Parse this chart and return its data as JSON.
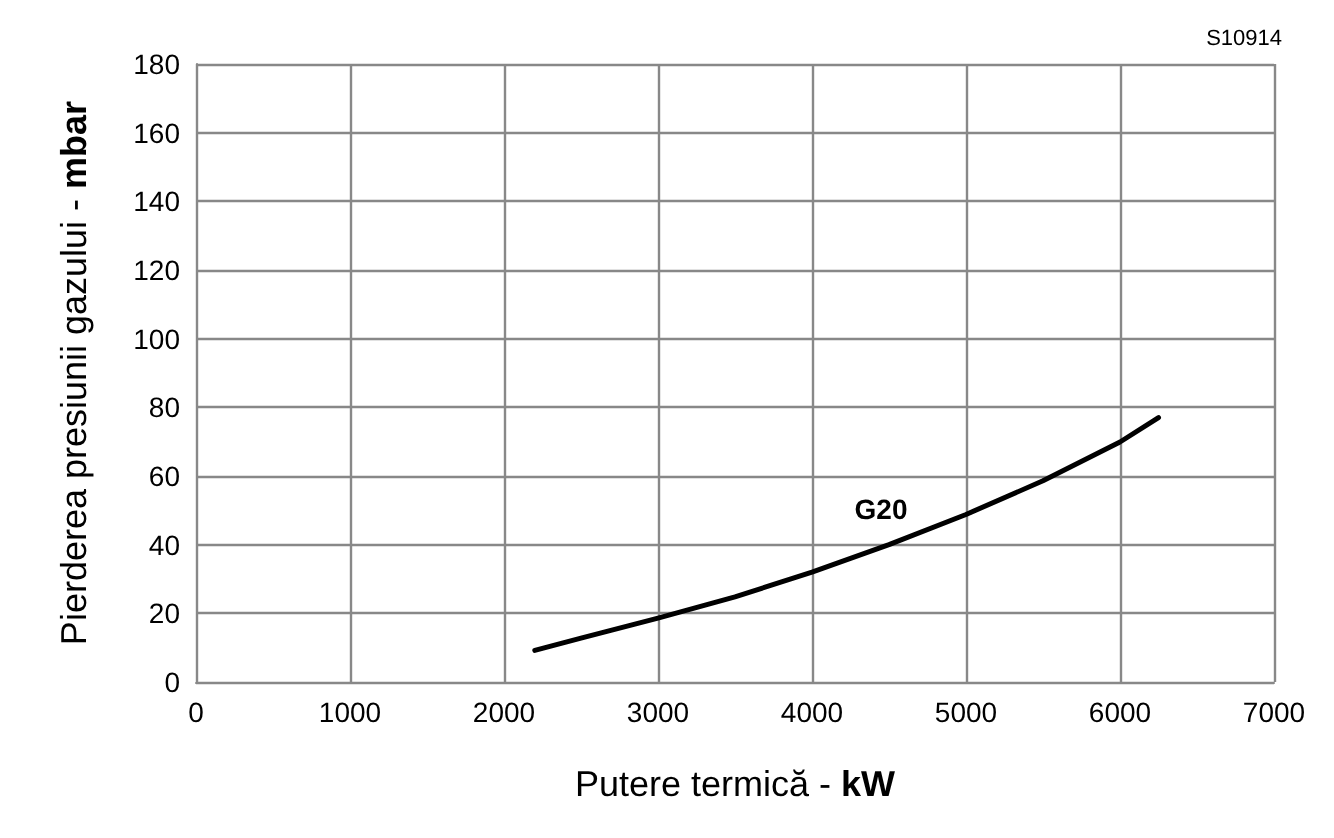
{
  "chart_data": {
    "type": "line",
    "xlabel": "Putere termică - kW",
    "ylabel": "Pierderea presiunii gazului - mbar",
    "annotations": [
      "S10914"
    ],
    "series": [
      {
        "name": "G20",
        "color": "#000000",
        "x": [
          2200,
          2500,
          3000,
          3500,
          4000,
          4500,
          5000,
          5500,
          6000,
          6250
        ],
        "values": [
          9.2,
          12.8,
          18.6,
          24.8,
          32,
          40,
          48.8,
          58.6,
          69.9,
          77
        ]
      }
    ],
    "xlim": [
      0,
      7000
    ],
    "xticks": [
      0,
      1000,
      2000,
      3000,
      4000,
      5000,
      6000,
      7000
    ],
    "ylim": [
      0,
      180
    ],
    "yticks": [
      0,
      20,
      40,
      60,
      80,
      100,
      120,
      140,
      160,
      180
    ],
    "grid": true,
    "marker": "none",
    "line_style": "solid"
  }
}
